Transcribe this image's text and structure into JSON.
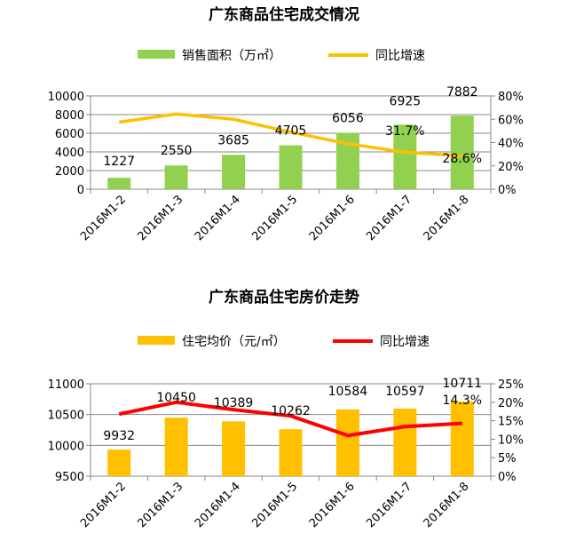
{
  "chart_data": [
    {
      "type": "bar",
      "title": "广东商品住宅成交情况",
      "categories": [
        "2016M1-2",
        "2016M1-3",
        "2016M1-4",
        "2016M1-5",
        "2016M1-6",
        "2016M1-7",
        "2016M1-8"
      ],
      "series": [
        {
          "name": "销售面积（万㎡）",
          "type": "bar",
          "axis": "left",
          "color": "#92D050",
          "values": [
            1227,
            2550,
            3685,
            4705,
            6056,
            6925,
            7882
          ],
          "labels": [
            "1227",
            "2550",
            "3685",
            "4705",
            "6056",
            "6925",
            "7882"
          ]
        },
        {
          "name": "同比增速",
          "type": "line",
          "axis": "right",
          "color": "#FFC000",
          "values": [
            57.5,
            64.5,
            60,
            49,
            39,
            31.7,
            28.6
          ],
          "labels": [
            "",
            "",
            "",
            "",
            "",
            "31.7%",
            "28.6%"
          ]
        }
      ],
      "ylim": [
        0,
        10000
      ],
      "yticks": [
        "0",
        "2000",
        "4000",
        "6000",
        "8000",
        "10000"
      ],
      "y2lim": [
        0,
        80
      ],
      "y2ticks": [
        "0%",
        "20%",
        "40%",
        "60%",
        "80%"
      ],
      "legend": "top"
    },
    {
      "type": "bar",
      "title": "广东商品住宅房价走势",
      "categories": [
        "2016M1-2",
        "2016M1-3",
        "2016M1-4",
        "2016M1-5",
        "2016M1-6",
        "2016M1-7",
        "2016M1-8"
      ],
      "series": [
        {
          "name": "住宅均价（元/㎡）",
          "type": "bar",
          "axis": "left",
          "color": "#FFC000",
          "values": [
            9932,
            10450,
            10389,
            10262,
            10584,
            10597,
            10711
          ],
          "labels": [
            "9932",
            "10450",
            "10389",
            "10262",
            "10584",
            "10597",
            "10711"
          ]
        },
        {
          "name": "同比增速",
          "type": "line",
          "axis": "right",
          "color": "#FF0000",
          "values": [
            16.8,
            20,
            18,
            16.3,
            11,
            13.4,
            14.3
          ],
          "labels": [
            "",
            "",
            "",
            "",
            "",
            "",
            "14.3%"
          ]
        }
      ],
      "ylim": [
        9500,
        11000
      ],
      "yticks": [
        "9500",
        "10000",
        "10500",
        "11000"
      ],
      "y2lim": [
        0,
        25
      ],
      "y2ticks": [
        "0%",
        "5%",
        "10%",
        "15%",
        "20%",
        "25%"
      ],
      "legend": "top"
    }
  ]
}
